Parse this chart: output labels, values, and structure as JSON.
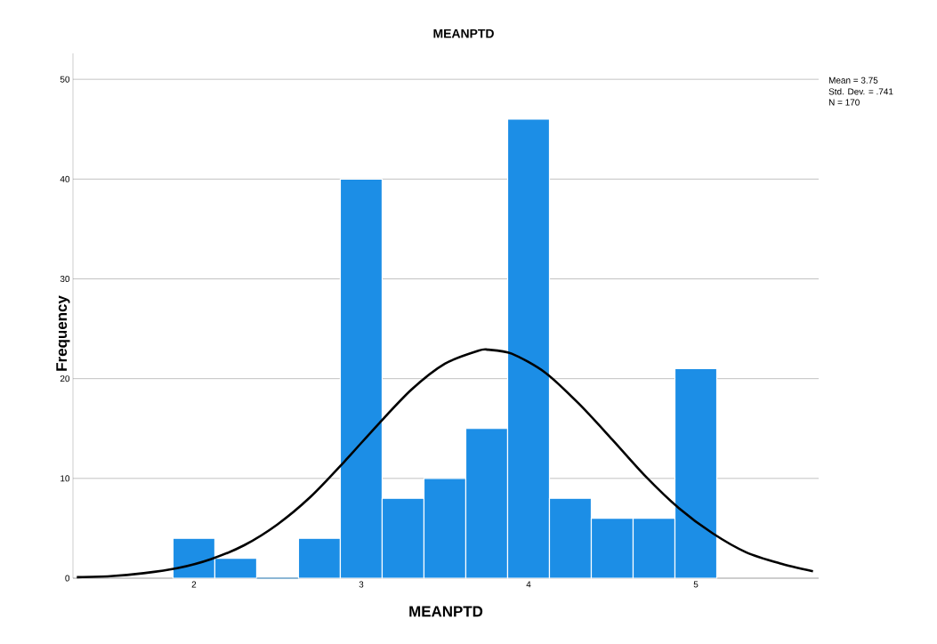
{
  "chart_data": {
    "type": "histogram",
    "title": "MEANPTD",
    "xlabel": "MEANPTD",
    "ylabel": "Frequency",
    "bins": [
      1.875,
      2.125,
      2.375,
      2.625,
      2.875,
      3.125,
      3.375,
      3.625,
      3.875,
      4.125,
      4.375,
      4.625,
      4.875,
      5.125
    ],
    "values": [
      4,
      2,
      0,
      4,
      40,
      8,
      10,
      15,
      46,
      8,
      6,
      6,
      21
    ],
    "color": "#1c8ee6",
    "series": [
      {
        "type": "line",
        "color": "#000000",
        "x": [
          1.3,
          1.5,
          1.7,
          1.9,
          2.1,
          2.3,
          2.5,
          2.7,
          2.9,
          3.1,
          3.3,
          3.5,
          3.7,
          3.76,
          3.9,
          4.1,
          4.3,
          4.5,
          4.7,
          4.9,
          5.1,
          5.3,
          5.5,
          5.7
        ],
        "values": [
          0.1,
          0.2,
          0.5,
          1.0,
          1.9,
          3.3,
          5.4,
          8.2,
          11.7,
          15.4,
          18.9,
          21.5,
          22.8,
          22.9,
          22.5,
          20.6,
          17.5,
          13.9,
          10.2,
          7.0,
          4.5,
          2.6,
          1.5,
          0.7
        ]
      }
    ],
    "xlim": [
      1.277,
      5.734
    ],
    "ylim": [
      0,
      52.6
    ],
    "xticks": [
      2,
      3,
      4,
      5
    ],
    "yticks": [
      0,
      10,
      20,
      30,
      40,
      50
    ],
    "grid": "y",
    "line_style": "solid",
    "marker": "none",
    "annotations": [
      "Mean = 3.75",
      "Std. Dev. = .741",
      "N = 170"
    ]
  }
}
